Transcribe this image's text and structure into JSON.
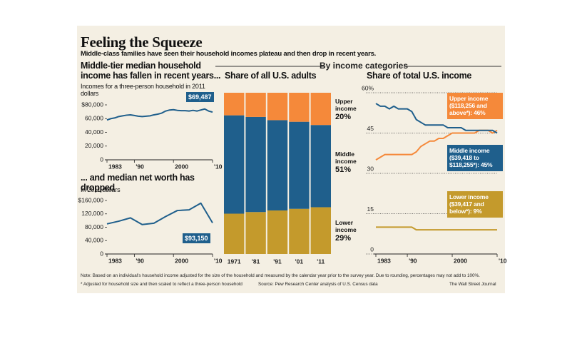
{
  "header": {
    "title": "Feeling the Squeeze",
    "subtitle": "Middle-class families have seen their household incomes plateau and then drop in recent years.",
    "group_label": "By income categories"
  },
  "chart_data": [
    {
      "type": "line",
      "title": "Middle-tier median household income has fallen in recent years...",
      "subtitle": "Incomes for a three-person household in 2011 dollars",
      "x": [
        1983,
        1984,
        1985,
        1986,
        1987,
        1988,
        1989,
        1990,
        1991,
        1992,
        1993,
        1994,
        1995,
        1996,
        1997,
        1998,
        1999,
        2000,
        2001,
        2002,
        2003,
        2004,
        2005,
        2006,
        2007,
        2008,
        2009,
        2010
      ],
      "values": [
        58000,
        60000,
        61000,
        63000,
        64000,
        65000,
        65500,
        64500,
        63500,
        63000,
        63500,
        64000,
        65500,
        66500,
        68000,
        71000,
        72500,
        73000,
        72000,
        71500,
        71500,
        71000,
        72000,
        71000,
        72500,
        74000,
        71000,
        69487
      ],
      "value_labels": [
        null,
        null,
        null,
        null,
        null,
        null,
        null,
        null,
        null,
        null,
        null,
        null,
        null,
        null,
        null,
        null,
        null,
        null,
        null,
        null,
        null,
        null,
        null,
        null,
        null,
        null,
        null,
        "$69,487"
      ],
      "color": "#1f5f8c",
      "xlim": [
        1983,
        2010
      ],
      "xticks": [
        1983,
        {
          "value": 1990,
          "label": "'90"
        },
        2000,
        {
          "value": 2010,
          "label": "'10"
        }
      ],
      "ylim": [
        0,
        80000
      ],
      "yticks": [
        {
          "value": 80000,
          "label": "$80,000"
        },
        {
          "value": 60000,
          "label": "60,000"
        },
        {
          "value": 40000,
          "label": "40,000"
        },
        {
          "value": 20000,
          "label": "20,000"
        },
        0
      ],
      "grid": false
    },
    {
      "type": "line",
      "title": "... and median net worth has dropped",
      "subtitle": "In 2011 dollars",
      "x": [
        1983,
        1986,
        1989,
        1992,
        1995,
        1998,
        2001,
        2004,
        2007,
        2010
      ],
      "values": [
        90000,
        98000,
        108000,
        88000,
        92000,
        112000,
        130000,
        132000,
        152000,
        93150
      ],
      "value_labels": [
        null,
        null,
        null,
        null,
        null,
        null,
        null,
        null,
        null,
        "$93,150"
      ],
      "color": "#1f5f8c",
      "xlim": [
        1983,
        2010
      ],
      "xticks": [
        1983,
        {
          "value": 1990,
          "label": "'90"
        },
        2000,
        {
          "value": 2010,
          "label": "'10"
        }
      ],
      "ylim": [
        0,
        160000
      ],
      "yticks": [
        {
          "value": 160000,
          "label": "$160,000"
        },
        {
          "value": 120000,
          "label": "120,000"
        },
        {
          "value": 80000,
          "label": "80,000"
        },
        {
          "value": 40000,
          "label": "40,000"
        },
        0
      ],
      "grid": false
    },
    {
      "type": "bar",
      "stacked": true,
      "title": "Share of all U.S. adults",
      "categories": [
        "1971",
        "'81",
        "'91",
        "'01",
        "'11"
      ],
      "series": [
        {
          "name": "Lower income",
          "color": "#c49a2c",
          "values": [
            25,
            26,
            27,
            28,
            29
          ],
          "value_labels": [
            null,
            null,
            null,
            null,
            "29%"
          ]
        },
        {
          "name": "Middle income",
          "color": "#1f5f8c",
          "values": [
            61,
            59,
            56,
            54,
            51
          ],
          "value_labels": [
            null,
            null,
            null,
            null,
            "51%"
          ]
        },
        {
          "name": "Upper income",
          "color": "#f5893a",
          "values": [
            14,
            15,
            17,
            18,
            20
          ],
          "value_labels": [
            null,
            null,
            null,
            null,
            "20%"
          ]
        }
      ],
      "ylim": [
        0,
        100
      ]
    },
    {
      "type": "line",
      "title": "Share of total U.S. income",
      "x": [
        1983,
        1984,
        1985,
        1986,
        1987,
        1988,
        1989,
        1990,
        1991,
        1992,
        1993,
        1994,
        1995,
        1996,
        1997,
        1998,
        1999,
        2000,
        2001,
        2002,
        2003,
        2004,
        2005,
        2006,
        2007,
        2008,
        2009,
        2010
      ],
      "series": [
        {
          "name": "Upper income ($118,256 and above*):",
          "color": "#f5893a",
          "values": [
            35,
            36,
            37,
            37,
            37,
            37,
            37,
            37,
            37,
            38,
            40,
            41,
            42,
            42,
            43,
            43,
            44,
            45,
            45,
            45,
            45,
            45,
            45,
            46,
            46,
            46,
            45,
            46
          ],
          "value_labels": [
            null,
            null,
            null,
            null,
            null,
            null,
            null,
            null,
            null,
            null,
            null,
            null,
            null,
            null,
            null,
            null,
            null,
            null,
            null,
            null,
            null,
            null,
            null,
            null,
            null,
            null,
            null,
            "46%"
          ]
        },
        {
          "name": "Middle income ($39,418 to $118,255*):",
          "color": "#1f5f8c",
          "values": [
            56,
            55,
            55,
            54,
            55,
            54,
            54,
            54,
            53,
            50,
            49,
            48,
            48,
            48,
            48,
            48,
            47,
            47,
            47,
            47,
            46,
            46,
            46,
            46,
            46,
            46,
            46,
            45
          ],
          "value_labels": [
            null,
            null,
            null,
            null,
            null,
            null,
            null,
            null,
            null,
            null,
            null,
            null,
            null,
            null,
            null,
            null,
            null,
            null,
            null,
            null,
            null,
            null,
            null,
            null,
            null,
            null,
            null,
            "45%"
          ]
        },
        {
          "name": "Lower income ($39,417 and below*):",
          "color": "#c49a2c",
          "values": [
            10,
            10,
            10,
            10,
            10,
            10,
            10,
            10,
            10,
            9,
            9,
            9,
            9,
            9,
            9,
            9,
            9,
            9,
            9,
            9,
            9,
            9,
            9,
            9,
            9,
            9,
            9,
            9
          ],
          "value_labels": [
            null,
            null,
            null,
            null,
            null,
            null,
            null,
            null,
            null,
            null,
            null,
            null,
            null,
            null,
            null,
            null,
            null,
            null,
            null,
            null,
            null,
            null,
            null,
            null,
            null,
            null,
            null,
            "9%"
          ]
        }
      ],
      "xlim": [
        1983,
        2010
      ],
      "xticks": [
        1983,
        {
          "value": 1990,
          "label": "'90"
        },
        2000,
        {
          "value": 2010,
          "label": "'10"
        }
      ],
      "ylim": [
        0,
        60
      ],
      "yticks": [
        {
          "value": 60,
          "label": "60%"
        },
        45,
        30,
        15,
        0
      ],
      "grid": true
    }
  ],
  "footer": {
    "note": "Note: Based on an individual's household income adjusted for the size of the household and measured by the calendar year prior to the survey year. Due to rounding, percentages may not add to 100%.",
    "footnote": "* Adjusted for household size and then scaled to reflect a three-person household",
    "source": "Source: Pew Research Center analysis of U.S. Census data",
    "credit": "The Wall Street Journal"
  }
}
